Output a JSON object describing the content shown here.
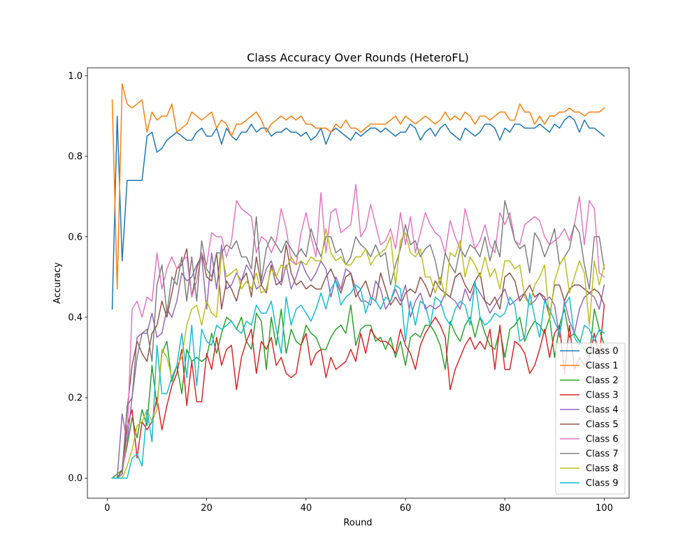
{
  "chart_data": {
    "type": "line",
    "title": "Class Accuracy Over Rounds (HeteroFL)",
    "xlabel": "Round",
    "ylabel": "Accuracy",
    "xlim": [
      -4,
      105
    ],
    "ylim": [
      -0.05,
      1.02
    ],
    "xticks": [
      0,
      20,
      40,
      60,
      80,
      100
    ],
    "yticks": [
      0.0,
      0.2,
      0.4,
      0.6,
      0.8,
      1.0
    ],
    "xtick_labels": [
      "0",
      "20",
      "40",
      "60",
      "80",
      "100"
    ],
    "ytick_labels": [
      "0.0",
      "0.2",
      "0.4",
      "0.6",
      "0.8",
      "1.0"
    ],
    "grid": false,
    "legend_position": "lower right",
    "x": [
      1,
      2,
      3,
      4,
      5,
      6,
      7,
      8,
      9,
      10,
      11,
      12,
      13,
      14,
      15,
      16,
      17,
      18,
      19,
      20,
      21,
      22,
      23,
      24,
      25,
      26,
      27,
      28,
      29,
      30,
      31,
      32,
      33,
      34,
      35,
      36,
      37,
      38,
      39,
      40,
      41,
      42,
      43,
      44,
      45,
      46,
      47,
      48,
      49,
      50,
      51,
      52,
      53,
      54,
      55,
      56,
      57,
      58,
      59,
      60,
      61,
      62,
      63,
      64,
      65,
      66,
      67,
      68,
      69,
      70,
      71,
      72,
      73,
      74,
      75,
      76,
      77,
      78,
      79,
      80,
      81,
      82,
      83,
      84,
      85,
      86,
      87,
      88,
      89,
      90,
      91,
      92,
      93,
      94,
      95,
      96,
      97,
      98,
      99,
      100
    ],
    "series": [
      {
        "name": "Class 0",
        "color": "#1f77b4",
        "values": [
          0.42,
          0.9,
          0.54,
          0.74,
          0.74,
          0.74,
          0.74,
          0.85,
          0.86,
          0.81,
          0.82,
          0.84,
          0.85,
          0.86,
          0.85,
          0.84,
          0.84,
          0.86,
          0.87,
          0.85,
          0.85,
          0.87,
          0.83,
          0.87,
          0.85,
          0.84,
          0.86,
          0.86,
          0.88,
          0.86,
          0.87,
          0.87,
          0.85,
          0.86,
          0.86,
          0.87,
          0.86,
          0.86,
          0.85,
          0.86,
          0.84,
          0.85,
          0.87,
          0.83,
          0.86,
          0.87,
          0.86,
          0.85,
          0.84,
          0.86,
          0.85,
          0.86,
          0.87,
          0.87,
          0.86,
          0.87,
          0.86,
          0.85,
          0.86,
          0.86,
          0.88,
          0.87,
          0.84,
          0.86,
          0.87,
          0.85,
          0.87,
          0.88,
          0.86,
          0.85,
          0.84,
          0.87,
          0.86,
          0.85,
          0.86,
          0.88,
          0.88,
          0.87,
          0.84,
          0.87,
          0.86,
          0.88,
          0.88,
          0.87,
          0.87,
          0.87,
          0.88,
          0.87,
          0.86,
          0.88,
          0.87,
          0.89,
          0.9,
          0.89,
          0.86,
          0.89,
          0.87,
          0.87,
          0.86,
          0.85
        ]
      },
      {
        "name": "Class 1",
        "color": "#ff7f0e",
        "values": [
          0.94,
          0.47,
          0.98,
          0.93,
          0.92,
          0.93,
          0.94,
          0.86,
          0.91,
          0.89,
          0.9,
          0.9,
          0.93,
          0.86,
          0.87,
          0.88,
          0.91,
          0.9,
          0.89,
          0.9,
          0.91,
          0.87,
          0.89,
          0.88,
          0.85,
          0.88,
          0.88,
          0.89,
          0.9,
          0.91,
          0.89,
          0.86,
          0.88,
          0.89,
          0.9,
          0.89,
          0.9,
          0.89,
          0.9,
          0.88,
          0.88,
          0.87,
          0.87,
          0.87,
          0.86,
          0.88,
          0.87,
          0.89,
          0.87,
          0.87,
          0.86,
          0.87,
          0.88,
          0.88,
          0.88,
          0.88,
          0.89,
          0.9,
          0.88,
          0.9,
          0.89,
          0.88,
          0.89,
          0.9,
          0.89,
          0.88,
          0.89,
          0.91,
          0.89,
          0.9,
          0.89,
          0.91,
          0.9,
          0.88,
          0.9,
          0.9,
          0.89,
          0.9,
          0.91,
          0.91,
          0.89,
          0.89,
          0.93,
          0.91,
          0.91,
          0.88,
          0.9,
          0.88,
          0.9,
          0.9,
          0.91,
          0.91,
          0.92,
          0.91,
          0.91,
          0.9,
          0.91,
          0.91,
          0.91,
          0.92
        ]
      },
      {
        "name": "Class 2",
        "color": "#2ca02c",
        "values": [
          0.0,
          0.01,
          0.02,
          0.08,
          0.15,
          0.1,
          0.17,
          0.13,
          0.28,
          0.18,
          0.31,
          0.34,
          0.24,
          0.28,
          0.21,
          0.32,
          0.29,
          0.3,
          0.29,
          0.3,
          0.36,
          0.31,
          0.36,
          0.4,
          0.39,
          0.37,
          0.4,
          0.34,
          0.32,
          0.41,
          0.39,
          0.27,
          0.4,
          0.33,
          0.42,
          0.31,
          0.37,
          0.34,
          0.33,
          0.38,
          0.36,
          0.35,
          0.32,
          0.32,
          0.35,
          0.37,
          0.38,
          0.36,
          0.43,
          0.33,
          0.37,
          0.38,
          0.38,
          0.34,
          0.35,
          0.32,
          0.35,
          0.3,
          0.34,
          0.28,
          0.35,
          0.36,
          0.35,
          0.38,
          0.38,
          0.36,
          0.33,
          0.27,
          0.39,
          0.36,
          0.34,
          0.38,
          0.4,
          0.35,
          0.4,
          0.36,
          0.33,
          0.32,
          0.37,
          0.3,
          0.37,
          0.38,
          0.4,
          0.34,
          0.37,
          0.39,
          0.38,
          0.36,
          0.4,
          0.3,
          0.38,
          0.42,
          0.35,
          0.36,
          0.34,
          0.32,
          0.3,
          0.42,
          0.37,
          0.33
        ]
      },
      {
        "name": "Class 3",
        "color": "#d62728",
        "values": [
          0.0,
          0.0,
          0.01,
          0.13,
          0.17,
          0.05,
          0.14,
          0.12,
          0.14,
          0.2,
          0.12,
          0.18,
          0.23,
          0.26,
          0.32,
          0.18,
          0.29,
          0.19,
          0.19,
          0.31,
          0.27,
          0.35,
          0.28,
          0.32,
          0.33,
          0.22,
          0.3,
          0.34,
          0.37,
          0.26,
          0.34,
          0.32,
          0.35,
          0.28,
          0.3,
          0.26,
          0.25,
          0.26,
          0.33,
          0.36,
          0.28,
          0.31,
          0.32,
          0.25,
          0.3,
          0.27,
          0.28,
          0.29,
          0.32,
          0.29,
          0.36,
          0.31,
          0.37,
          0.35,
          0.34,
          0.34,
          0.33,
          0.31,
          0.37,
          0.33,
          0.31,
          0.27,
          0.33,
          0.36,
          0.38,
          0.4,
          0.38,
          0.35,
          0.22,
          0.27,
          0.3,
          0.33,
          0.35,
          0.32,
          0.34,
          0.32,
          0.37,
          0.27,
          0.38,
          0.27,
          0.27,
          0.34,
          0.33,
          0.31,
          0.26,
          0.28,
          0.32,
          0.37,
          0.3,
          0.36,
          0.38,
          0.26,
          0.38,
          0.27,
          0.3,
          0.28,
          0.3,
          0.36,
          0.3,
          0.43
        ]
      },
      {
        "name": "Class 4",
        "color": "#9467bd",
        "values": [
          0.0,
          0.0,
          0.16,
          0.09,
          0.2,
          0.35,
          0.36,
          0.36,
          0.41,
          0.35,
          0.36,
          0.42,
          0.4,
          0.44,
          0.51,
          0.49,
          0.5,
          0.53,
          0.55,
          0.42,
          0.56,
          0.47,
          0.58,
          0.47,
          0.48,
          0.51,
          0.49,
          0.53,
          0.51,
          0.47,
          0.48,
          0.52,
          0.54,
          0.5,
          0.48,
          0.53,
          0.47,
          0.5,
          0.54,
          0.51,
          0.49,
          0.51,
          0.54,
          0.52,
          0.45,
          0.5,
          0.47,
          0.52,
          0.51,
          0.47,
          0.44,
          0.44,
          0.43,
          0.49,
          0.47,
          0.42,
          0.44,
          0.47,
          0.44,
          0.48,
          0.4,
          0.44,
          0.46,
          0.42,
          0.43,
          0.42,
          0.43,
          0.46,
          0.45,
          0.44,
          0.42,
          0.47,
          0.44,
          0.48,
          0.46,
          0.44,
          0.41,
          0.43,
          0.45,
          0.47,
          0.43,
          0.44,
          0.45,
          0.46,
          0.43,
          0.44,
          0.46,
          0.44,
          0.45,
          0.43,
          0.35,
          0.44,
          0.39,
          0.36,
          0.42,
          0.45,
          0.46,
          0.45,
          0.42,
          0.48
        ]
      },
      {
        "name": "Class 5",
        "color": "#8c564b",
        "values": [
          0.0,
          0.0,
          0.02,
          0.17,
          0.28,
          0.34,
          0.31,
          0.29,
          0.36,
          0.38,
          0.44,
          0.4,
          0.46,
          0.52,
          0.53,
          0.57,
          0.45,
          0.52,
          0.56,
          0.5,
          0.49,
          0.56,
          0.42,
          0.49,
          0.47,
          0.44,
          0.49,
          0.51,
          0.45,
          0.55,
          0.48,
          0.46,
          0.53,
          0.48,
          0.49,
          0.58,
          0.51,
          0.48,
          0.49,
          0.47,
          0.48,
          0.47,
          0.47,
          0.5,
          0.52,
          0.49,
          0.46,
          0.5,
          0.51,
          0.45,
          0.47,
          0.49,
          0.45,
          0.44,
          0.51,
          0.47,
          0.43,
          0.45,
          0.43,
          0.46,
          0.47,
          0.46,
          0.5,
          0.48,
          0.45,
          0.49,
          0.47,
          0.46,
          0.45,
          0.5,
          0.51,
          0.48,
          0.46,
          0.49,
          0.51,
          0.44,
          0.43,
          0.45,
          0.42,
          0.5,
          0.51,
          0.49,
          0.44,
          0.46,
          0.48,
          0.45,
          0.46,
          0.45,
          0.4,
          0.48,
          0.48,
          0.44,
          0.47,
          0.48,
          0.48,
          0.47,
          0.46,
          0.47,
          0.46,
          0.43
        ]
      },
      {
        "name": "Class 6",
        "color": "#e377c2",
        "values": [
          0.0,
          0.0,
          0.01,
          0.1,
          0.42,
          0.44,
          0.4,
          0.45,
          0.44,
          0.56,
          0.47,
          0.52,
          0.55,
          0.52,
          0.54,
          0.55,
          0.45,
          0.49,
          0.56,
          0.53,
          0.61,
          0.6,
          0.6,
          0.55,
          0.59,
          0.69,
          0.67,
          0.66,
          0.65,
          0.56,
          0.6,
          0.59,
          0.56,
          0.59,
          0.67,
          0.62,
          0.54,
          0.53,
          0.61,
          0.66,
          0.6,
          0.55,
          0.71,
          0.56,
          0.66,
          0.67,
          0.61,
          0.62,
          0.63,
          0.73,
          0.6,
          0.62,
          0.68,
          0.63,
          0.58,
          0.59,
          0.62,
          0.57,
          0.66,
          0.58,
          0.65,
          0.56,
          0.61,
          0.66,
          0.63,
          0.61,
          0.6,
          0.56,
          0.64,
          0.6,
          0.57,
          0.67,
          0.62,
          0.57,
          0.59,
          0.63,
          0.58,
          0.56,
          0.66,
          0.63,
          0.66,
          0.59,
          0.58,
          0.63,
          0.64,
          0.65,
          0.64,
          0.6,
          0.58,
          0.59,
          0.6,
          0.62,
          0.59,
          0.63,
          0.7,
          0.58,
          0.69,
          0.67,
          0.51,
          0.5
        ]
      },
      {
        "name": "Class 7",
        "color": "#7f7f7f",
        "values": [
          0.0,
          0.0,
          0.01,
          0.18,
          0.2,
          0.3,
          0.36,
          0.37,
          0.29,
          0.48,
          0.53,
          0.41,
          0.5,
          0.48,
          0.55,
          0.44,
          0.55,
          0.44,
          0.59,
          0.52,
          0.5,
          0.56,
          0.56,
          0.58,
          0.57,
          0.59,
          0.55,
          0.55,
          0.52,
          0.65,
          0.49,
          0.57,
          0.6,
          0.58,
          0.56,
          0.59,
          0.57,
          0.55,
          0.57,
          0.55,
          0.62,
          0.58,
          0.55,
          0.6,
          0.6,
          0.56,
          0.57,
          0.53,
          0.55,
          0.6,
          0.58,
          0.57,
          0.55,
          0.58,
          0.55,
          0.56,
          0.48,
          0.53,
          0.57,
          0.63,
          0.58,
          0.59,
          0.55,
          0.57,
          0.58,
          0.54,
          0.48,
          0.56,
          0.53,
          0.51,
          0.57,
          0.55,
          0.58,
          0.57,
          0.55,
          0.6,
          0.54,
          0.59,
          0.55,
          0.69,
          0.64,
          0.59,
          0.57,
          0.58,
          0.51,
          0.61,
          0.59,
          0.55,
          0.58,
          0.62,
          0.53,
          0.55,
          0.57,
          0.63,
          0.61,
          0.53,
          0.47,
          0.6,
          0.6,
          0.52
        ]
      },
      {
        "name": "Class 8",
        "color": "#bcbd22",
        "values": [
          0.0,
          0.0,
          0.0,
          0.03,
          0.07,
          0.13,
          0.14,
          0.17,
          0.14,
          0.17,
          0.32,
          0.3,
          0.25,
          0.28,
          0.3,
          0.38,
          0.42,
          0.43,
          0.38,
          0.44,
          0.41,
          0.4,
          0.56,
          0.5,
          0.51,
          0.52,
          0.47,
          0.49,
          0.47,
          0.51,
          0.46,
          0.47,
          0.52,
          0.5,
          0.53,
          0.52,
          0.55,
          0.53,
          0.54,
          0.53,
          0.55,
          0.54,
          0.54,
          0.62,
          0.56,
          0.54,
          0.55,
          0.53,
          0.53,
          0.55,
          0.55,
          0.57,
          0.53,
          0.55,
          0.56,
          0.57,
          0.6,
          0.48,
          0.59,
          0.61,
          0.56,
          0.55,
          0.57,
          0.5,
          0.5,
          0.46,
          0.5,
          0.45,
          0.56,
          0.55,
          0.59,
          0.5,
          0.55,
          0.53,
          0.5,
          0.55,
          0.5,
          0.52,
          0.47,
          0.54,
          0.54,
          0.52,
          0.53,
          0.45,
          0.43,
          0.48,
          0.5,
          0.53,
          0.39,
          0.49,
          0.53,
          0.55,
          0.46,
          0.5,
          0.54,
          0.51,
          0.38,
          0.54,
          0.48,
          0.53
        ]
      },
      {
        "name": "Class 9",
        "color": "#17becf",
        "values": [
          0.0,
          0.0,
          0.0,
          0.0,
          0.05,
          0.06,
          0.03,
          0.17,
          0.09,
          0.33,
          0.21,
          0.21,
          0.25,
          0.28,
          0.36,
          0.25,
          0.38,
          0.23,
          0.37,
          0.34,
          0.33,
          0.38,
          0.37,
          0.38,
          0.39,
          0.37,
          0.36,
          0.39,
          0.38,
          0.43,
          0.41,
          0.41,
          0.44,
          0.37,
          0.31,
          0.45,
          0.38,
          0.42,
          0.43,
          0.41,
          0.39,
          0.42,
          0.46,
          0.42,
          0.47,
          0.49,
          0.43,
          0.45,
          0.46,
          0.48,
          0.47,
          0.41,
          0.45,
          0.44,
          0.42,
          0.45,
          0.44,
          0.48,
          0.47,
          0.34,
          0.44,
          0.38,
          0.44,
          0.43,
          0.38,
          0.45,
          0.44,
          0.4,
          0.38,
          0.42,
          0.44,
          0.43,
          0.38,
          0.49,
          0.4,
          0.38,
          0.39,
          0.41,
          0.4,
          0.41,
          0.45,
          0.43,
          0.34,
          0.35,
          0.46,
          0.4,
          0.35,
          0.44,
          0.42,
          0.39,
          0.36,
          0.43,
          0.45,
          0.35,
          0.33,
          0.38,
          0.37,
          0.34,
          0.37,
          0.36
        ]
      }
    ]
  }
}
